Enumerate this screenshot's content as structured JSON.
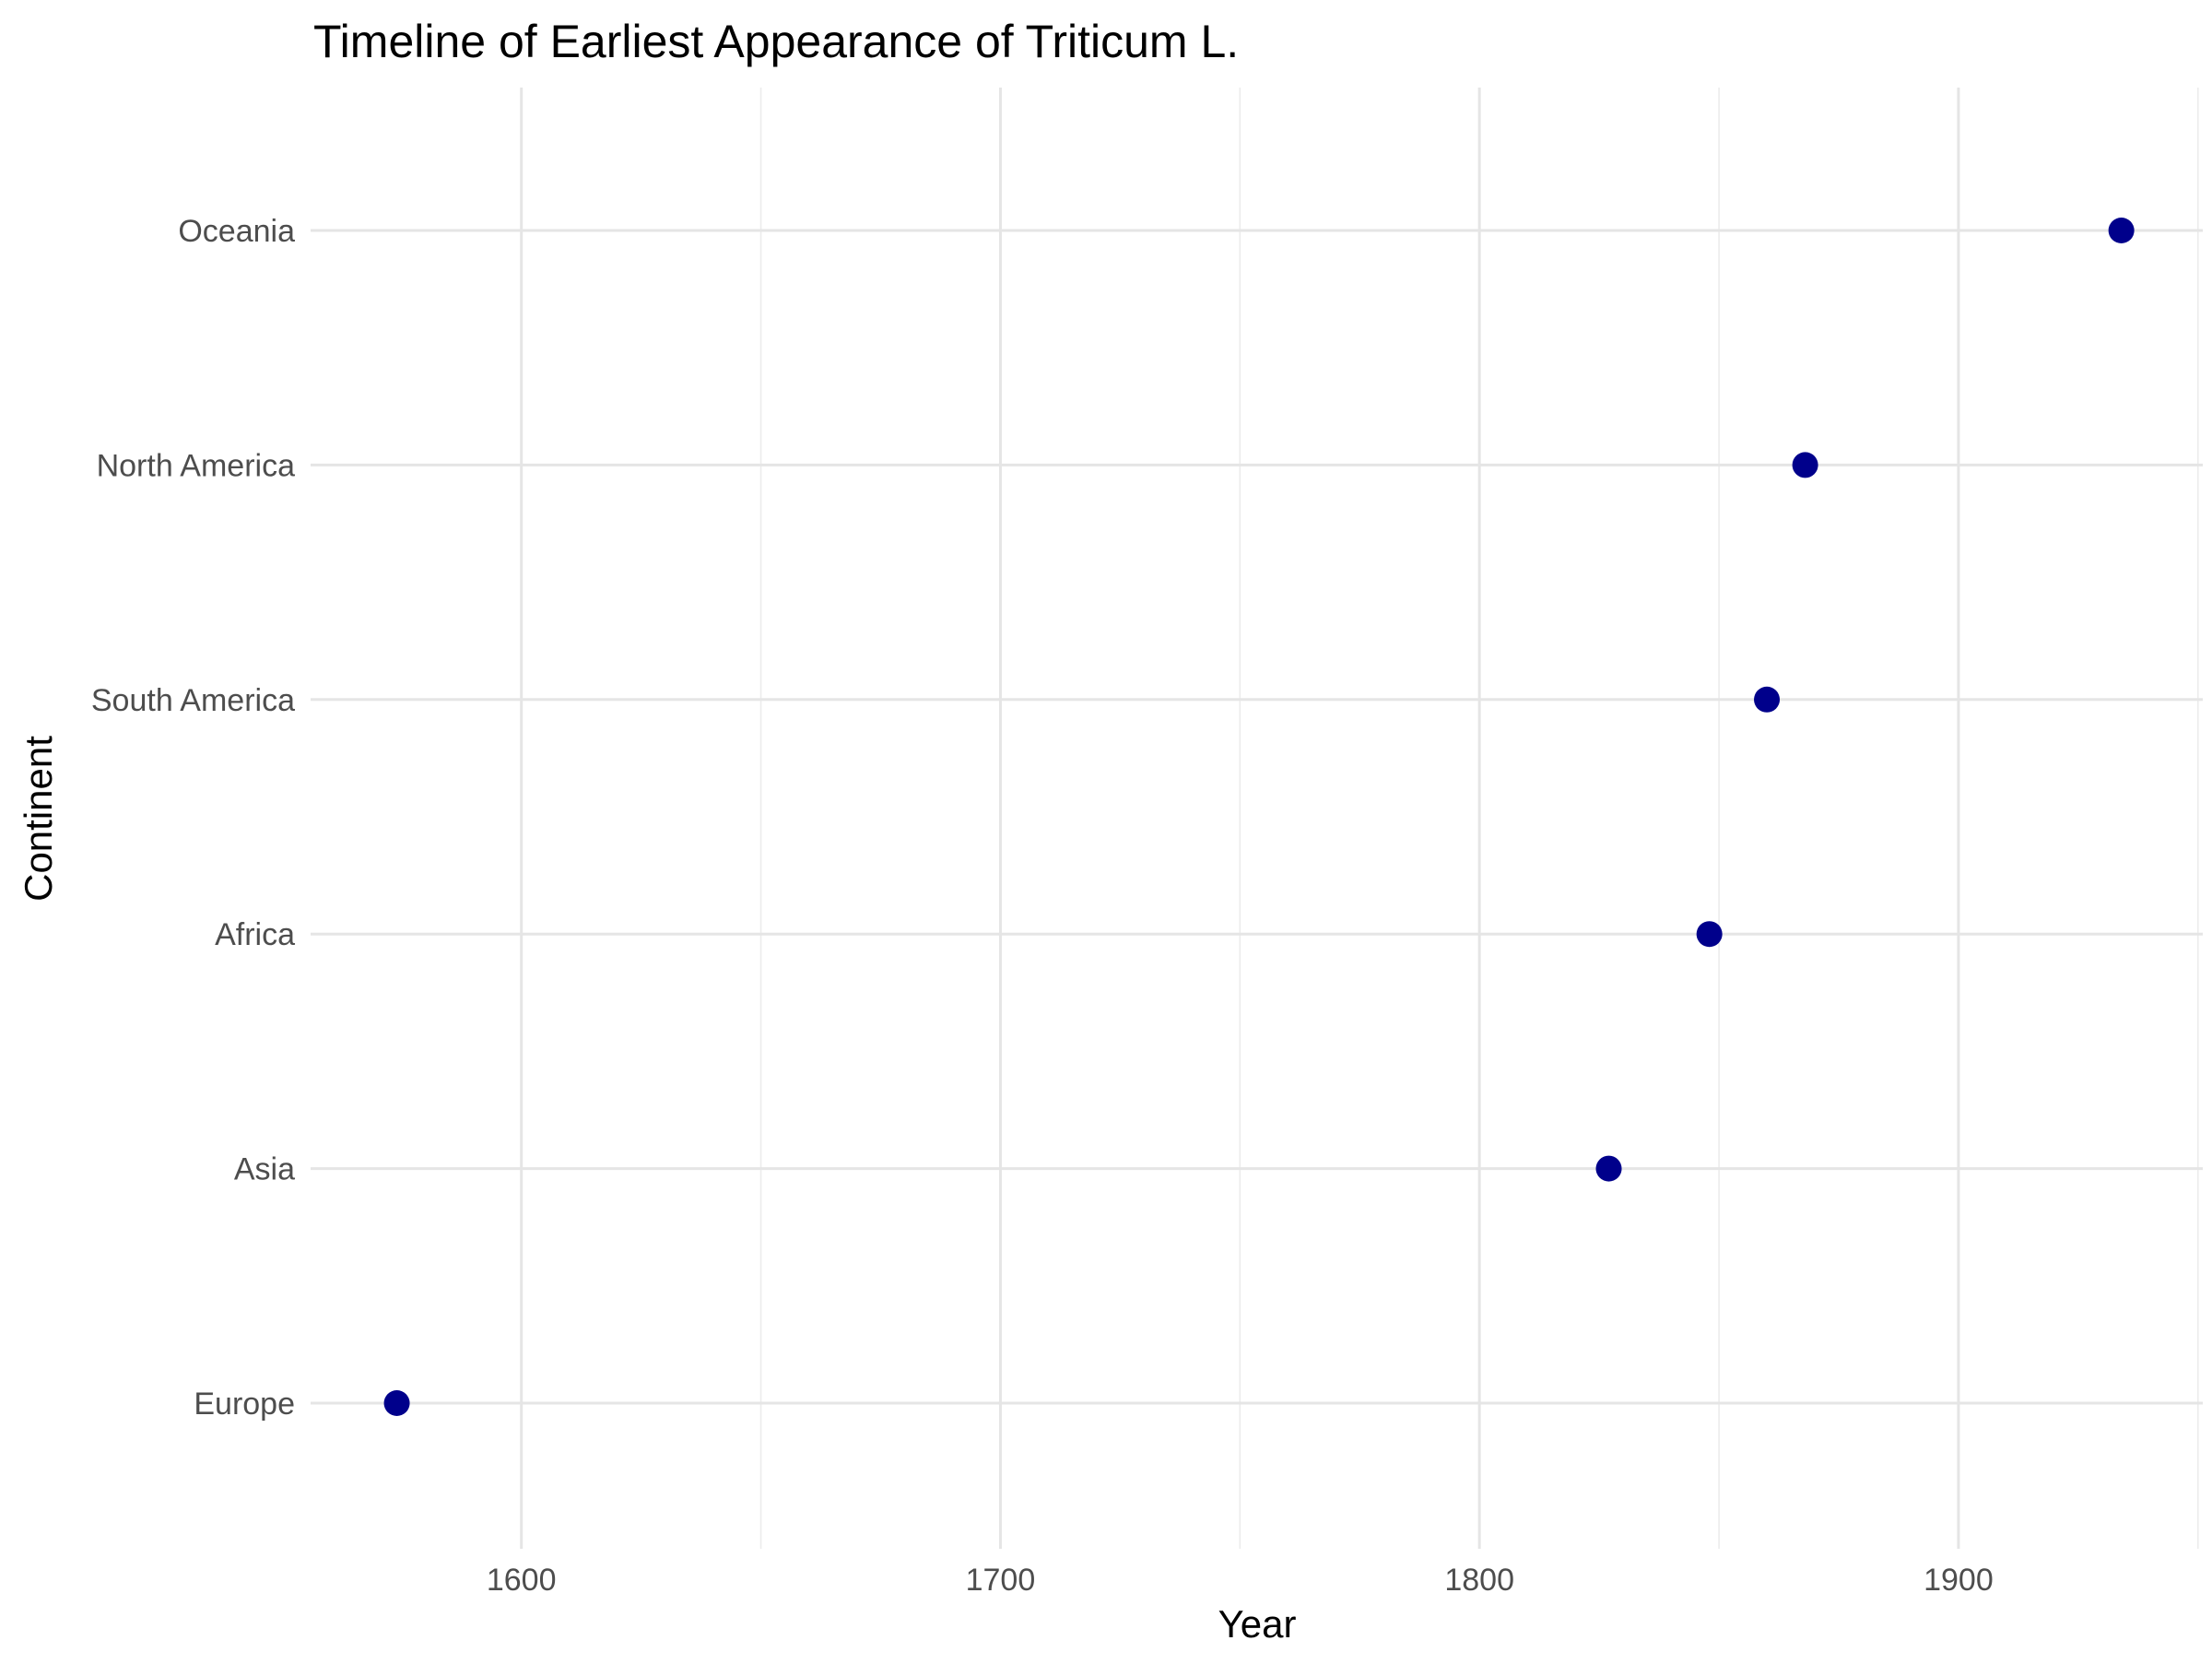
{
  "chart_data": {
    "type": "scatter",
    "title": "Timeline of Earliest Appearance of Triticum L.",
    "xlabel": "Year",
    "ylabel": "Continent",
    "xlim": [
      1556,
      1951
    ],
    "x_ticks": [
      1600,
      1700,
      1800,
      1900
    ],
    "categories": [
      "Europe",
      "Asia",
      "Africa",
      "South America",
      "North America",
      "Oceania"
    ],
    "points": [
      {
        "category": "Europe",
        "x": 1574
      },
      {
        "category": "Asia",
        "x": 1827
      },
      {
        "category": "Africa",
        "x": 1848
      },
      {
        "category": "South America",
        "x": 1860
      },
      {
        "category": "North America",
        "x": 1868
      },
      {
        "category": "Oceania",
        "x": 1934
      }
    ],
    "point_color": "#00008B",
    "grid": true,
    "legend": "none"
  }
}
